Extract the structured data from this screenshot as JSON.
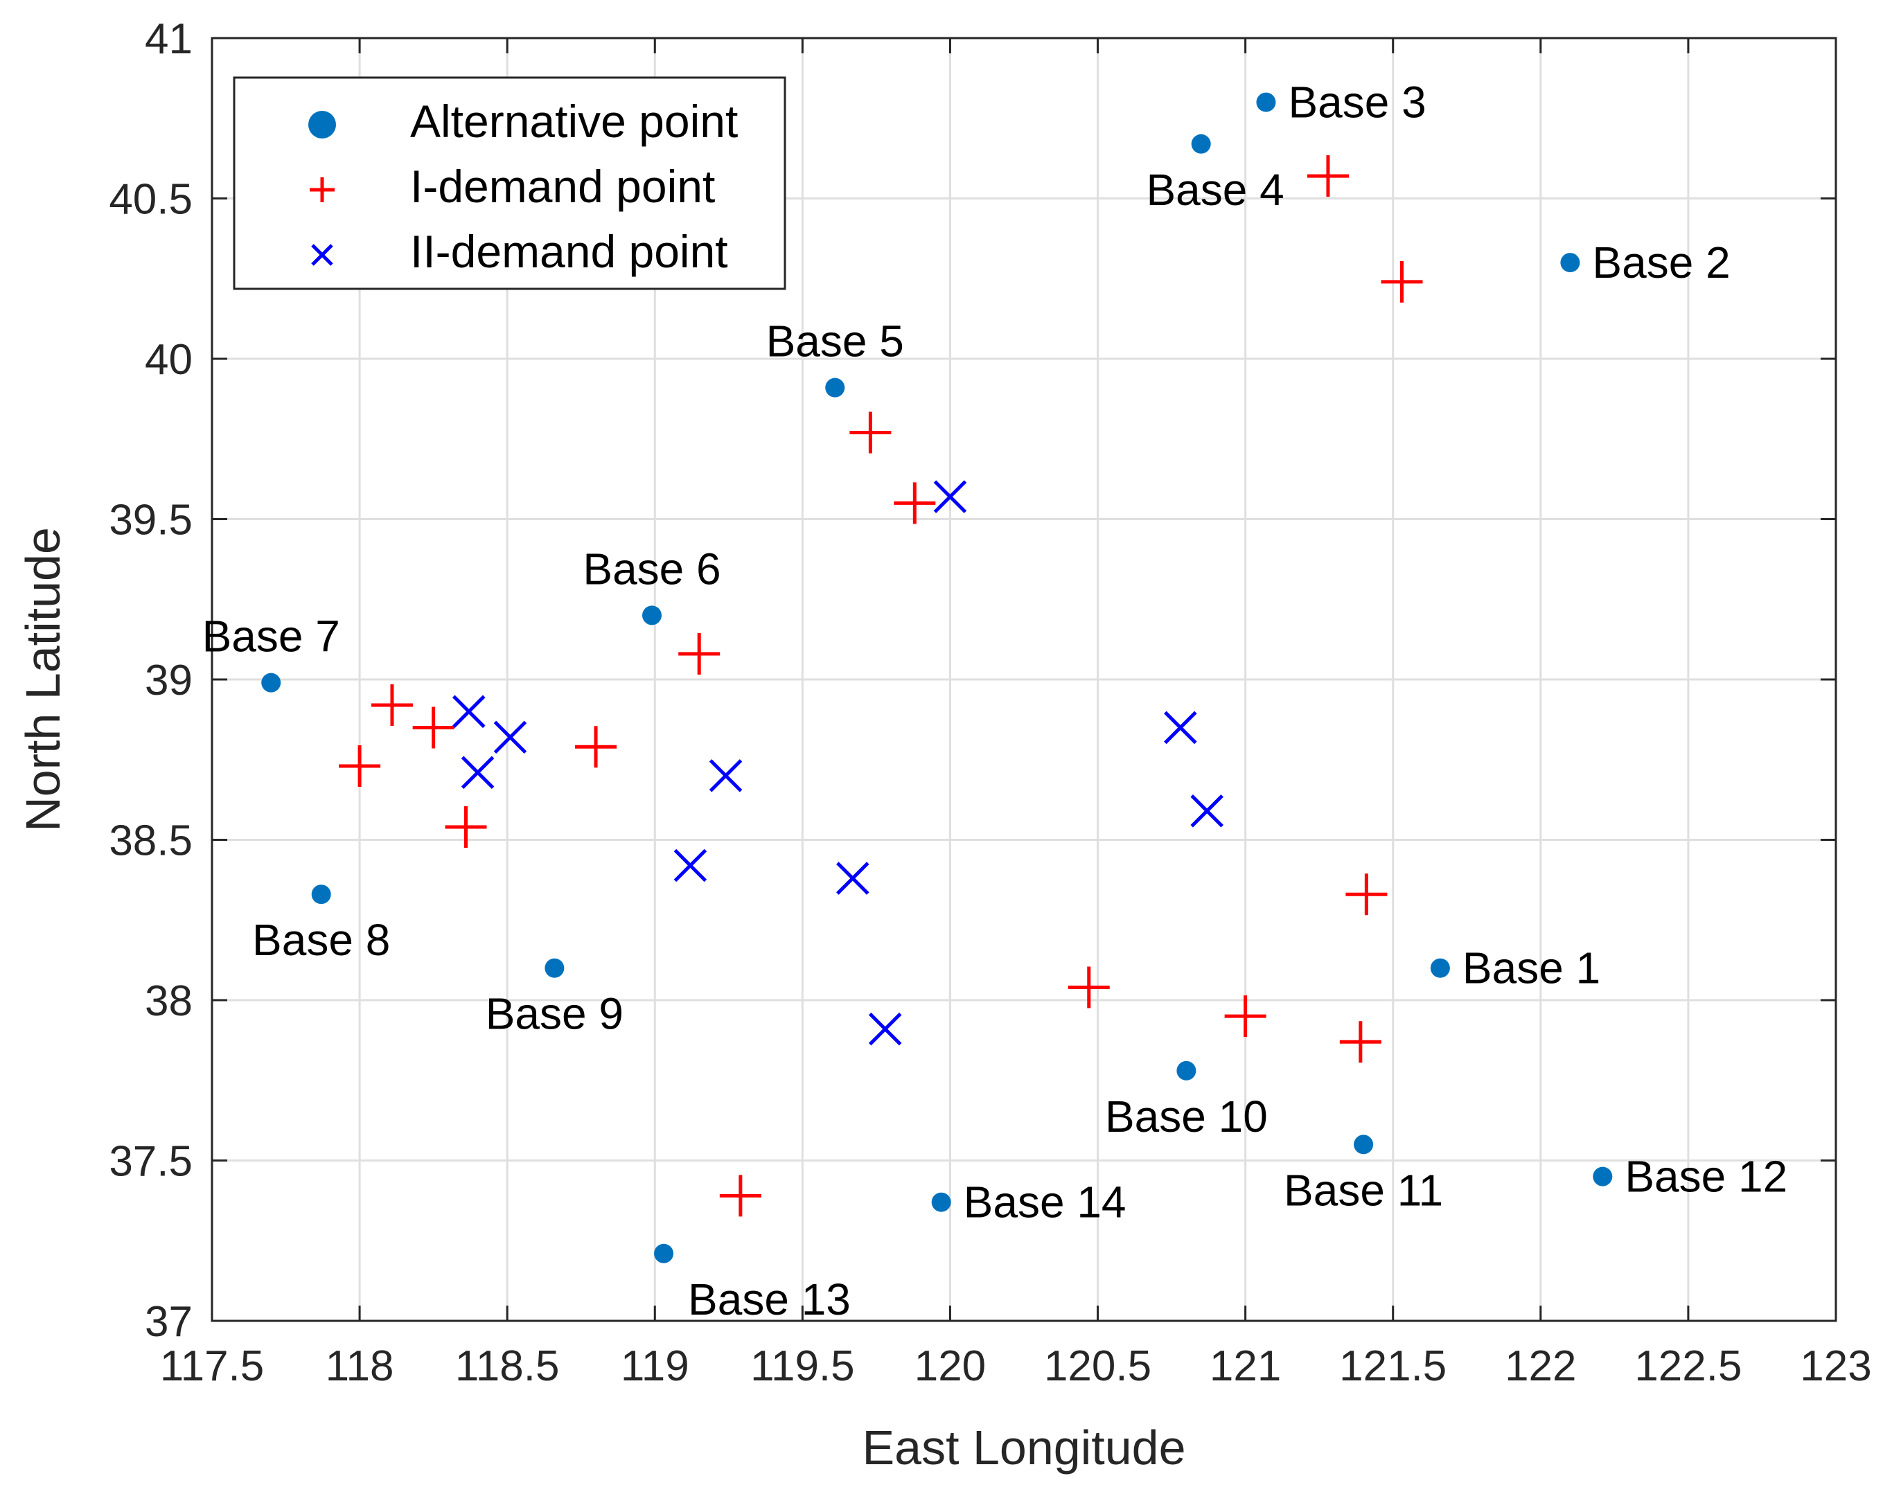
{
  "chart_data": {
    "type": "scatter",
    "xlabel": "East Longitude",
    "ylabel": "North Latitude",
    "xlim": [
      117.5,
      123
    ],
    "ylim": [
      37,
      41
    ],
    "grid": true,
    "legend_position": "top-left",
    "x_ticks": [
      "117.5",
      "118",
      "118.5",
      "119",
      "119.5",
      "120",
      "120.5",
      "121",
      "121.5",
      "122",
      "122.5",
      "123"
    ],
    "y_ticks": [
      "37",
      "37.5",
      "38",
      "38.5",
      "39",
      "39.5",
      "40",
      "40.5",
      "41"
    ],
    "colors": {
      "alternative": "#0072BD",
      "i_demand": "#FF0000",
      "ii_demand": "#0000FF",
      "grid": "#DFDFDF",
      "axis": "#262626"
    },
    "legend": [
      {
        "label": "Alternative point",
        "marker": "dot"
      },
      {
        "label": "I-demand point",
        "marker": "plus"
      },
      {
        "label": "II-demand point",
        "marker": "cross"
      }
    ],
    "series": [
      {
        "name": "Alternative point",
        "marker": "dot",
        "points": [
          {
            "x": 121.66,
            "y": 38.1,
            "label": "Base 1",
            "anchor": "right"
          },
          {
            "x": 122.1,
            "y": 40.3,
            "label": "Base 2",
            "anchor": "right"
          },
          {
            "x": 121.07,
            "y": 40.8,
            "label": "Base 3",
            "anchor": "right"
          },
          {
            "x": 120.85,
            "y": 40.67,
            "label": "Base 4",
            "anchor": "below-left"
          },
          {
            "x": 119.61,
            "y": 39.91,
            "label": "Base 5",
            "anchor": "above"
          },
          {
            "x": 118.99,
            "y": 39.2,
            "label": "Base 6",
            "anchor": "above"
          },
          {
            "x": 117.7,
            "y": 38.99,
            "label": "Base 7",
            "anchor": "above"
          },
          {
            "x": 117.87,
            "y": 38.33,
            "label": "Base 8",
            "anchor": "below"
          },
          {
            "x": 118.66,
            "y": 38.1,
            "label": "Base 9",
            "anchor": "below"
          },
          {
            "x": 120.8,
            "y": 37.78,
            "label": "Base 10",
            "anchor": "below"
          },
          {
            "x": 121.4,
            "y": 37.55,
            "label": "Base 11",
            "anchor": "below"
          },
          {
            "x": 122.21,
            "y": 37.45,
            "label": "Base 12",
            "anchor": "right"
          },
          {
            "x": 119.03,
            "y": 37.21,
            "label": "Base 13",
            "anchor": "below-right"
          },
          {
            "x": 119.97,
            "y": 37.37,
            "label": "Base 14",
            "anchor": "right"
          }
        ]
      },
      {
        "name": "I-demand point",
        "marker": "plus",
        "points": [
          {
            "x": 121.28,
            "y": 40.57
          },
          {
            "x": 121.53,
            "y": 40.24
          },
          {
            "x": 119.73,
            "y": 39.77
          },
          {
            "x": 119.88,
            "y": 39.55
          },
          {
            "x": 119.15,
            "y": 39.08
          },
          {
            "x": 118.11,
            "y": 38.92
          },
          {
            "x": 118.25,
            "y": 38.85
          },
          {
            "x": 118.0,
            "y": 38.73
          },
          {
            "x": 118.8,
            "y": 38.79
          },
          {
            "x": 118.36,
            "y": 38.54
          },
          {
            "x": 121.41,
            "y": 38.33
          },
          {
            "x": 120.47,
            "y": 38.04
          },
          {
            "x": 121.0,
            "y": 37.95
          },
          {
            "x": 121.39,
            "y": 37.87
          },
          {
            "x": 119.29,
            "y": 37.39
          }
        ]
      },
      {
        "name": "II-demand point",
        "marker": "cross",
        "points": [
          {
            "x": 120.0,
            "y": 39.57
          },
          {
            "x": 118.37,
            "y": 38.9
          },
          {
            "x": 118.51,
            "y": 38.82
          },
          {
            "x": 118.4,
            "y": 38.71
          },
          {
            "x": 119.24,
            "y": 38.7
          },
          {
            "x": 120.78,
            "y": 38.85
          },
          {
            "x": 120.87,
            "y": 38.59
          },
          {
            "x": 119.12,
            "y": 38.42
          },
          {
            "x": 119.67,
            "y": 38.38
          },
          {
            "x": 119.78,
            "y": 37.91
          }
        ]
      }
    ]
  }
}
